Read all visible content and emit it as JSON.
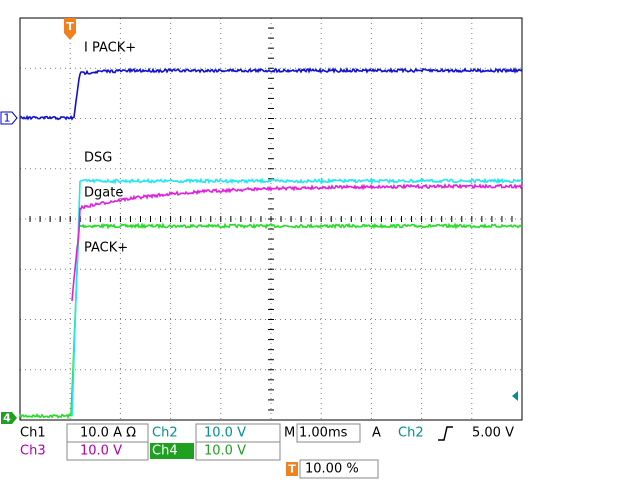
{
  "screen": {
    "markers": {
      "trigger": "T",
      "ch1": "1",
      "ch4": "4"
    },
    "trace_labels": [
      "I PACK+",
      "DSG",
      "Dgate",
      "PACK+"
    ],
    "status": {
      "ch1": {
        "name": "Ch1",
        "scale": "10.0 A Ω"
      },
      "ch2": {
        "name": "Ch2",
        "scale": "10.0 V"
      },
      "ch3": {
        "name": "Ch3",
        "scale": "10.0 V"
      },
      "ch4": {
        "name": "Ch4",
        "scale": "10.0 V"
      },
      "timebase": {
        "label": "M",
        "value": "1.00ms"
      },
      "trigger": {
        "mode": "A",
        "source": "Ch2",
        "level": "5.00 V"
      },
      "position": {
        "icon": "T",
        "value": "10.00 %"
      }
    }
  }
}
